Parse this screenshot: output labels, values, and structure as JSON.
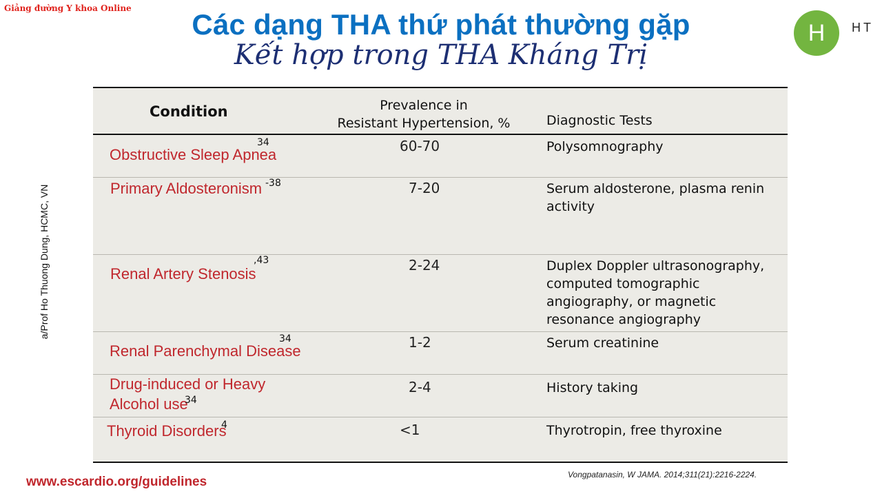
{
  "brand": "Giảng đường Y khoa Online",
  "title": "Các dạng THA thứ phát thường gặp",
  "subtitle": "Kết hợp trong THA Kháng Trị",
  "logo": {
    "letter": "H",
    "text": "HT"
  },
  "side_text": "a/Prof Ho Thuong Dung, HCMC, VN",
  "table": {
    "headers": {
      "condition": "Condition",
      "prevalence": "Prevalence in Resistant Hypertension, %",
      "tests": "Diagnostic Tests"
    },
    "rows": [
      {
        "condition": "Obstructive Sleep Apnea",
        "ref": "34",
        "prevalence": "60-70",
        "tests": "Polysomnography"
      },
      {
        "condition": "Primary Aldosteronism",
        "ref": "-38",
        "prevalence": "7-20",
        "tests": "Serum aldosterone, plasma renin activity"
      },
      {
        "condition": "Renal Artery Stenosis",
        "ref": ",43",
        "prevalence": "2-24",
        "tests": "Duplex Doppler ultrasonography, computed tomographic angiography, or magnetic resonance angiography"
      },
      {
        "condition": "Renal Parenchymal Disease",
        "ref": "34",
        "prevalence": "1-2",
        "tests": "Serum creatinine"
      },
      {
        "condition": "Drug-induced or Heavy Alcohol use",
        "ref": "34",
        "prevalence": "2-4",
        "tests": "History taking"
      },
      {
        "condition": "Thyroid Disorders",
        "ref": "4",
        "prevalence": "<1",
        "tests": "Thyrotropin, free thyroxine"
      }
    ]
  },
  "citation": "Vongpatanasin, W JAMA. 2014;311(21):2216-2224.",
  "url": "www.escardio.org/guidelines"
}
